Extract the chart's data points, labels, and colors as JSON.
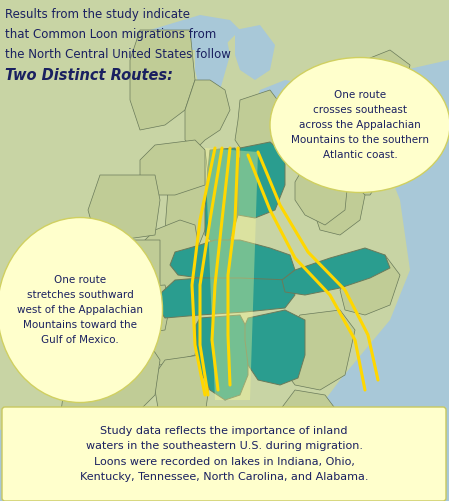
{
  "figsize": [
    4.49,
    5.01
  ],
  "dpi": 100,
  "bg_color": "#b8cee0",
  "map_land": "#c8d4a4",
  "map_land2": "#bcc89a",
  "ocean_color": "#a8c8d8",
  "teal_color": "#2a9d8f",
  "state_edge": "#6a7a5a",
  "yellow_line_color": "#FFD700",
  "yellow_bubble_color": "#FFFFCC",
  "text_color": "#1a2060",
  "title_lines": [
    "Results from the study indicate",
    "that Common Loon migrations from",
    "the North Central United States follow"
  ],
  "title_bold": "Two Distinct Routes",
  "callout_left": "One route\nstretches southward\nwest of the Appalachian\nMountains toward the\nGulf of Mexico.",
  "callout_right": "One route\ncrosses southeast\nacross the Appalachian\nMountains to the southern\nAtlantic coast.",
  "callout_bottom": "Study data reflects the importance of inland\nwaters in the southeastern U.S. during migration.\nLoons were recorded on lakes in Indiana, Ohio,\nKentucky, Tennessee, North Carolina, and Alabama."
}
